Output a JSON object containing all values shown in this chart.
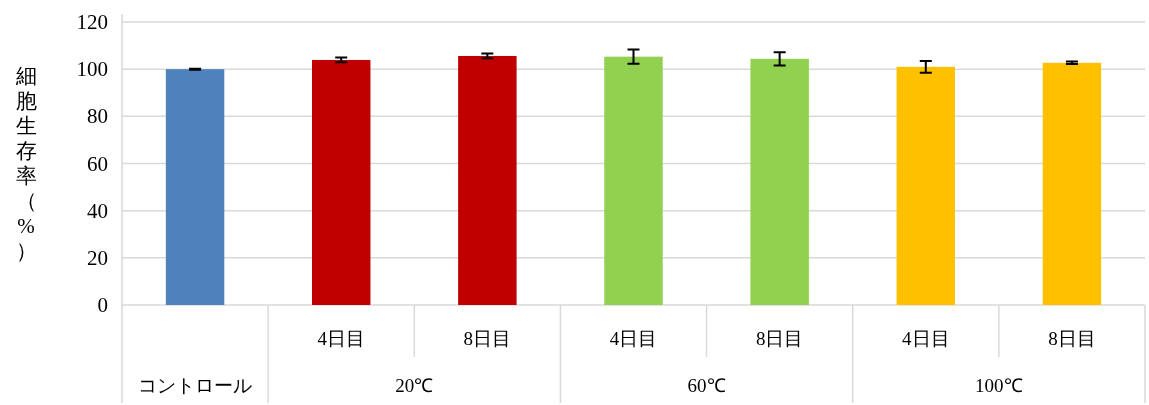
{
  "chart_data": {
    "type": "bar",
    "ylabel": "細胞生存率（%）",
    "categories": [
      null,
      "4日目",
      "8日目",
      "4日目",
      "8日目",
      "4日目",
      "8日目"
    ],
    "values": [
      100,
      103.9,
      105.6,
      105.3,
      104.4,
      101,
      102.7
    ],
    "colors": [
      "#4f81bd",
      "#c00000",
      "#c00000",
      "#92d050",
      "#92d050",
      "#ffc000",
      "#ffc000"
    ],
    "errors": [
      0.2,
      1,
      1,
      3,
      2.8,
      2.5,
      0.5
    ],
    "annotations": [
      "コントロール",
      "20℃",
      "60℃",
      "100℃"
    ],
    "ylim": [
      0,
      120
    ],
    "yticks": [
      0,
      20,
      40,
      60,
      80,
      100,
      120
    ],
    "grid": "y"
  }
}
